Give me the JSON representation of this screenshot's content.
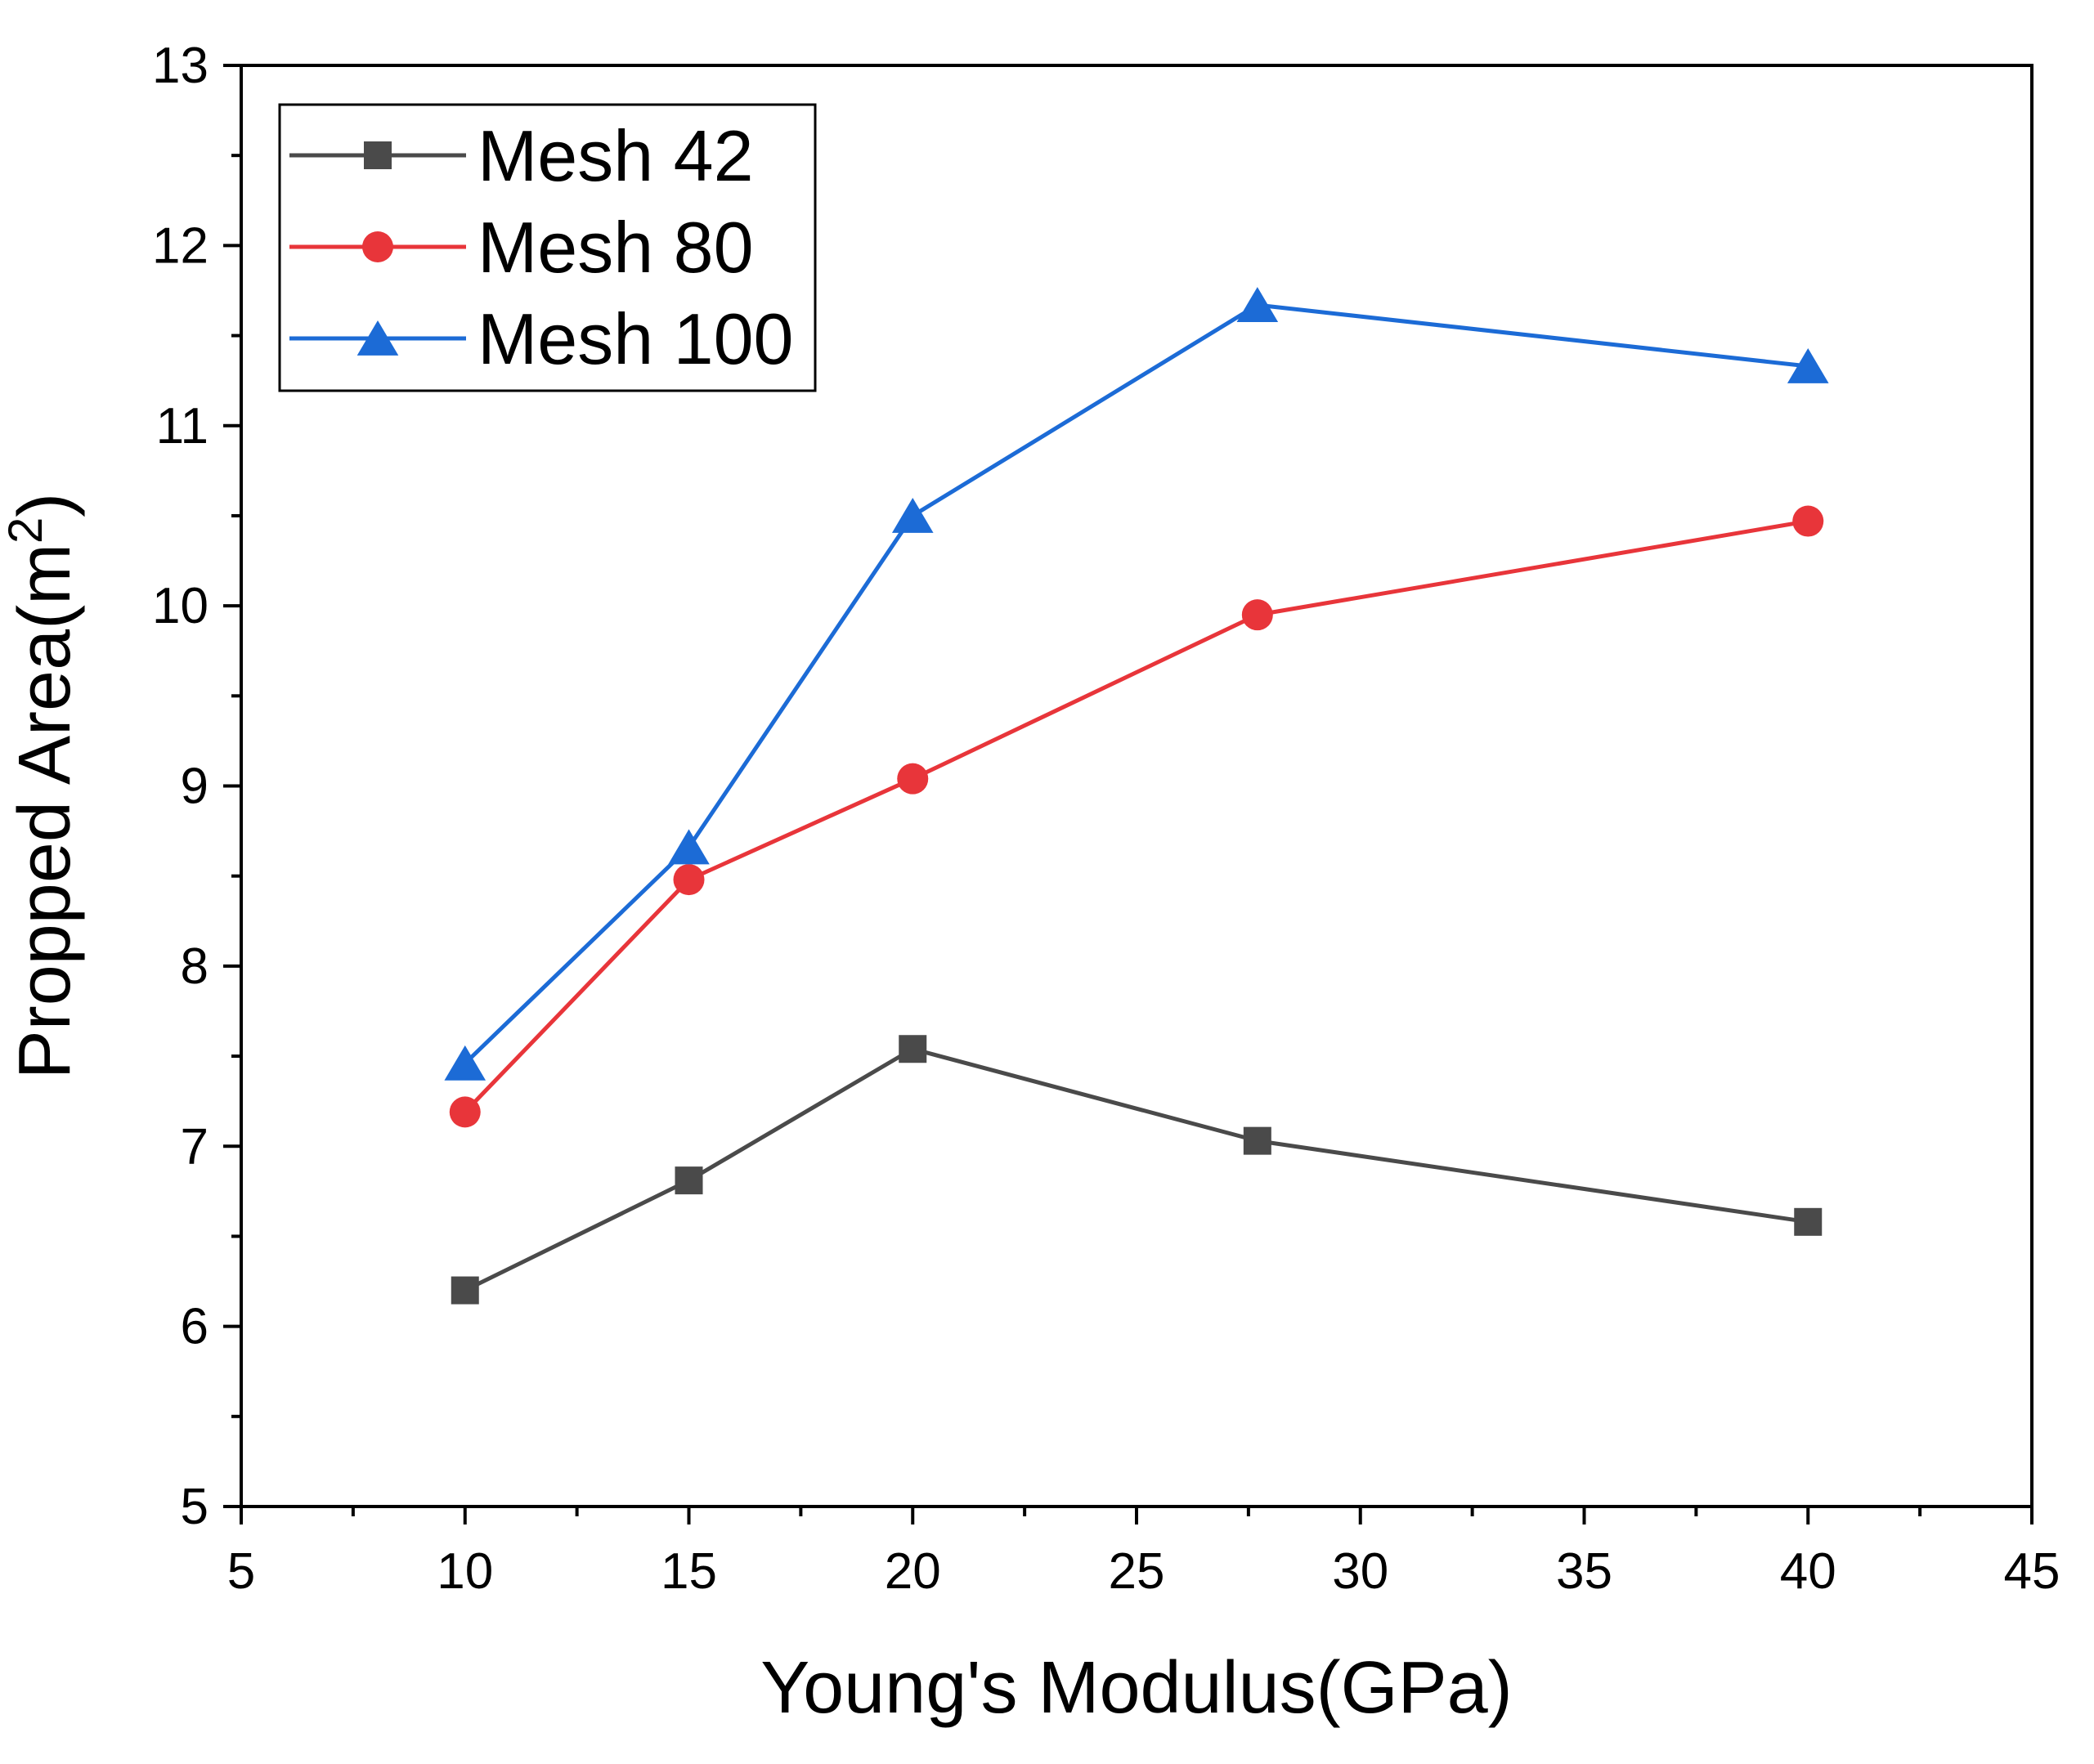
{
  "chart_data": {
    "type": "line",
    "title": "",
    "xlabel": "Young's Modulus(GPa)",
    "ylabel_main": "Propped Area(m",
    "ylabel_sup": "2",
    "ylabel_close": ")",
    "xlim": [
      5,
      45
    ],
    "ylim": [
      5,
      13
    ],
    "xticks": [
      5,
      10,
      15,
      20,
      25,
      30,
      35,
      40,
      45
    ],
    "yticks": [
      5,
      6,
      7,
      8,
      9,
      10,
      11,
      12,
      13
    ],
    "x": [
      10,
      15,
      20,
      27.7,
      40
    ],
    "legend_position": "top-left",
    "grid": false,
    "series": [
      {
        "name": "Mesh 42",
        "color": "#4a4a4a",
        "marker": "square",
        "values": [
          6.2,
          6.81,
          7.54,
          7.03,
          6.58
        ]
      },
      {
        "name": "Mesh 80",
        "color": "#e8353a",
        "marker": "circle",
        "values": [
          7.19,
          8.48,
          9.04,
          9.95,
          10.47
        ]
      },
      {
        "name": "Mesh 100",
        "color": "#1c6bd6",
        "marker": "triangle",
        "values": [
          7.46,
          8.66,
          10.5,
          11.67,
          11.33
        ]
      }
    ]
  }
}
